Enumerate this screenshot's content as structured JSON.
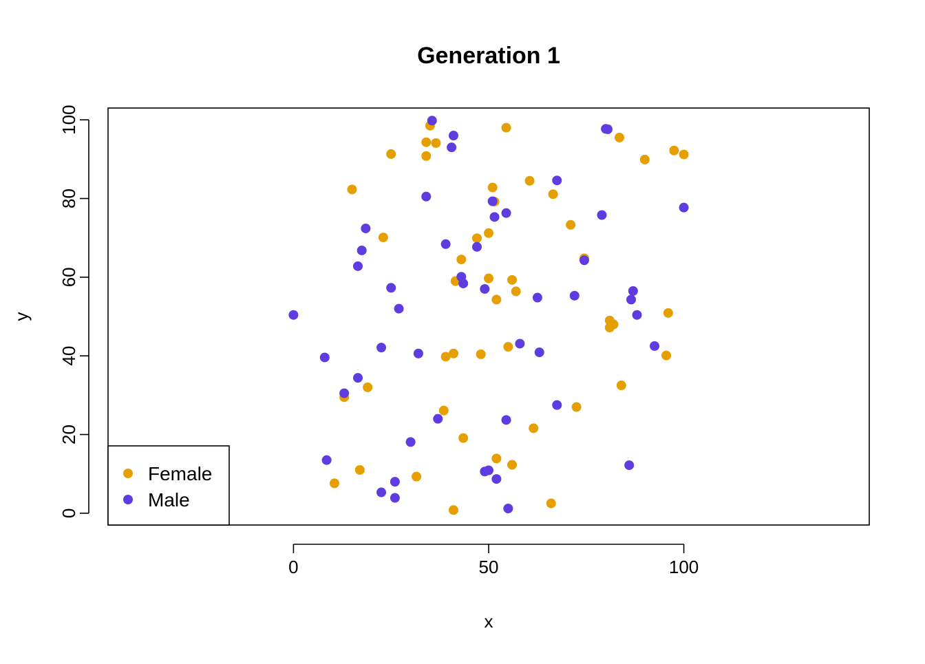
{
  "chart_data": {
    "type": "scatter",
    "title": "Generation 1",
    "xlabel": "x",
    "ylabel": "y",
    "xlim": [
      -47.5,
      147.5
    ],
    "ylim": [
      -3,
      103
    ],
    "xticks": [
      0,
      50,
      100
    ],
    "yticks": [
      0,
      20,
      40,
      60,
      80,
      100
    ],
    "grid": false,
    "legend_position": "bottom-left",
    "series": [
      {
        "name": "Female",
        "color": "#E69F00",
        "points": [
          [
            35,
            98.5
          ],
          [
            54.5,
            98
          ],
          [
            34,
            94.3
          ],
          [
            36.5,
            94.1
          ],
          [
            25,
            91.3
          ],
          [
            34,
            90.8
          ],
          [
            83.5,
            95.5
          ],
          [
            97.5,
            92.2
          ],
          [
            100,
            91.2
          ],
          [
            90,
            89.9
          ],
          [
            15,
            82.3
          ],
          [
            51,
            82.8
          ],
          [
            51.5,
            79.2
          ],
          [
            60.5,
            84.5
          ],
          [
            66.5,
            81.1
          ],
          [
            71,
            73.3
          ],
          [
            23,
            70.1
          ],
          [
            47,
            69.9
          ],
          [
            50,
            71.2
          ],
          [
            43,
            64.5
          ],
          [
            74.5,
            64.8
          ],
          [
            41.5,
            59
          ],
          [
            50,
            59.7
          ],
          [
            56,
            59.3
          ],
          [
            57,
            56.4
          ],
          [
            52,
            54.3
          ],
          [
            81,
            49
          ],
          [
            82,
            48
          ],
          [
            81,
            47.2
          ],
          [
            96,
            50.9
          ],
          [
            39,
            39.8
          ],
          [
            41,
            40.6
          ],
          [
            48,
            40.4
          ],
          [
            55,
            42.3
          ],
          [
            95.5,
            40.1
          ],
          [
            84,
            32.5
          ],
          [
            13,
            29.5
          ],
          [
            19,
            32
          ],
          [
            38.5,
            26.1
          ],
          [
            72.5,
            27
          ],
          [
            43.5,
            19.1
          ],
          [
            61.5,
            21.6
          ],
          [
            52,
            13.9
          ],
          [
            56,
            12.3
          ],
          [
            17,
            11
          ],
          [
            31.5,
            9.3
          ],
          [
            10.5,
            7.6
          ],
          [
            41,
            0.8
          ],
          [
            66,
            2.5
          ]
        ]
      },
      {
        "name": "Male",
        "color": "#5E3CE0",
        "points": [
          [
            35.5,
            99.8
          ],
          [
            41,
            96
          ],
          [
            40.5,
            93
          ],
          [
            80,
            97.7
          ],
          [
            80.5,
            97.6
          ],
          [
            34,
            80.5
          ],
          [
            51,
            79.3
          ],
          [
            67.5,
            84.6
          ],
          [
            51.5,
            75.3
          ],
          [
            54.5,
            76.3
          ],
          [
            79,
            75.8
          ],
          [
            100,
            77.7
          ],
          [
            18.5,
            72.4
          ],
          [
            17.5,
            66.8
          ],
          [
            16.5,
            62.8
          ],
          [
            39,
            68.4
          ],
          [
            47,
            67.7
          ],
          [
            74.5,
            64.3
          ],
          [
            43,
            60.1
          ],
          [
            43.5,
            58.4
          ],
          [
            49,
            57
          ],
          [
            25,
            57.3
          ],
          [
            27,
            52
          ],
          [
            62.5,
            54.8
          ],
          [
            72,
            55.3
          ],
          [
            87,
            56.5
          ],
          [
            86.5,
            54.3
          ],
          [
            88,
            50.4
          ],
          [
            0,
            50.4
          ],
          [
            92.5,
            42.5
          ],
          [
            8,
            39.6
          ],
          [
            22.5,
            42.1
          ],
          [
            32,
            40.6
          ],
          [
            58,
            43.1
          ],
          [
            63,
            40.9
          ],
          [
            16.5,
            34.4
          ],
          [
            13,
            30.5
          ],
          [
            67.5,
            27.5
          ],
          [
            37,
            24
          ],
          [
            54.5,
            23.7
          ],
          [
            30,
            18.1
          ],
          [
            8.5,
            13.5
          ],
          [
            49,
            10.6
          ],
          [
            50,
            10.9
          ],
          [
            52,
            8.7
          ],
          [
            86,
            12.2
          ],
          [
            26,
            8
          ],
          [
            22.5,
            5.3
          ],
          [
            26,
            3.9
          ],
          [
            55,
            1.2
          ]
        ]
      }
    ]
  }
}
